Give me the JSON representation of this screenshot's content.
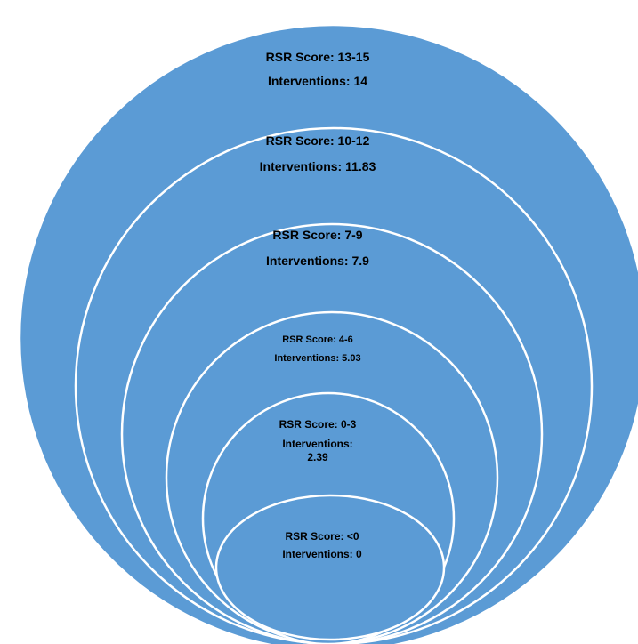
{
  "colors": {
    "fill": "#5b9bd5",
    "stroke": "#ffffff",
    "text": "#000000"
  },
  "levels": [
    {
      "score": "RSR Score: 13-15",
      "interventions": "Interventions: 14"
    },
    {
      "score": "RSR Score: 10-12",
      "interventions": "Interventions: 11.83"
    },
    {
      "score": "RSR Score: 7-9",
      "interventions": "Interventions: 7.9"
    },
    {
      "score": "RSR Score: 4-6",
      "interventions": "Interventions: 5.03"
    },
    {
      "score": "RSR Score: 0-3",
      "interventions": "Interventions: 2.39"
    },
    {
      "score": "RSR  Score: <0",
      "interventions": "Interventions: 0"
    }
  ]
}
